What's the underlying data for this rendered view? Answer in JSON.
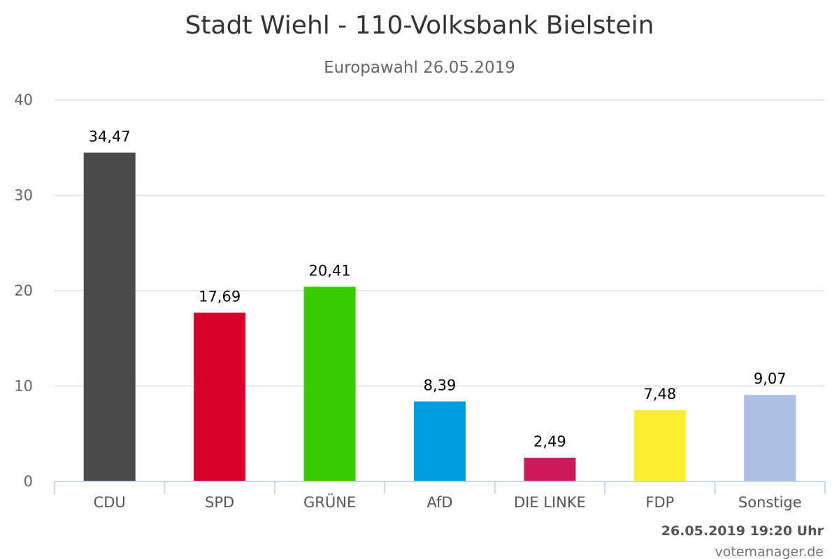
{
  "chart_data": {
    "type": "bar",
    "title": "Stadt Wiehl - 110-Volksbank Bielstein",
    "subtitle": "Europawahl 26.05.2019",
    "categories": [
      "CDU",
      "SPD",
      "GRÜNE",
      "AfD",
      "DIE LINKE",
      "FDP",
      "Sonstige"
    ],
    "values": [
      34.47,
      17.69,
      20.41,
      8.39,
      2.49,
      7.48,
      9.07
    ],
    "value_labels": [
      "34,47",
      "17,69",
      "20,41",
      "8,39",
      "2,49",
      "7,48",
      "9,07"
    ],
    "colors": [
      "#4a4a4a",
      "#d6002b",
      "#37cc00",
      "#009ee0",
      "#cd1a5a",
      "#fcec2e",
      "#acbfe3"
    ],
    "ylim": [
      0,
      40
    ],
    "yticks": [
      0,
      10,
      20,
      30,
      40
    ],
    "grid": true,
    "legend": false,
    "footer": {
      "timestamp": "26.05.2019 19:20 Uhr",
      "source": "votemanager.de"
    }
  }
}
